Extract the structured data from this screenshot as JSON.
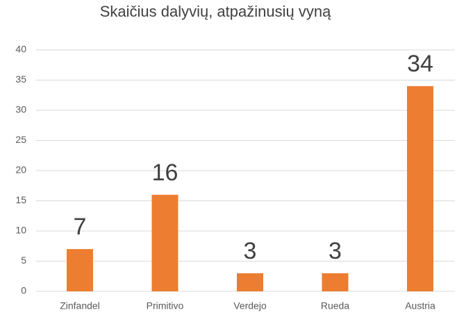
{
  "chart_data": {
    "type": "bar",
    "title": "Skaičius dalyvių, atpažinusių vyną",
    "categories": [
      "Zinfandel",
      "Primitivo",
      "Verdejo",
      "Rueda",
      "Austria"
    ],
    "values": [
      7,
      16,
      3,
      3,
      34
    ],
    "color": "#ed7d31",
    "ylim": [
      0,
      40
    ],
    "yticks": [
      0,
      5,
      10,
      15,
      20,
      25,
      30,
      35,
      40
    ],
    "grid": true
  }
}
